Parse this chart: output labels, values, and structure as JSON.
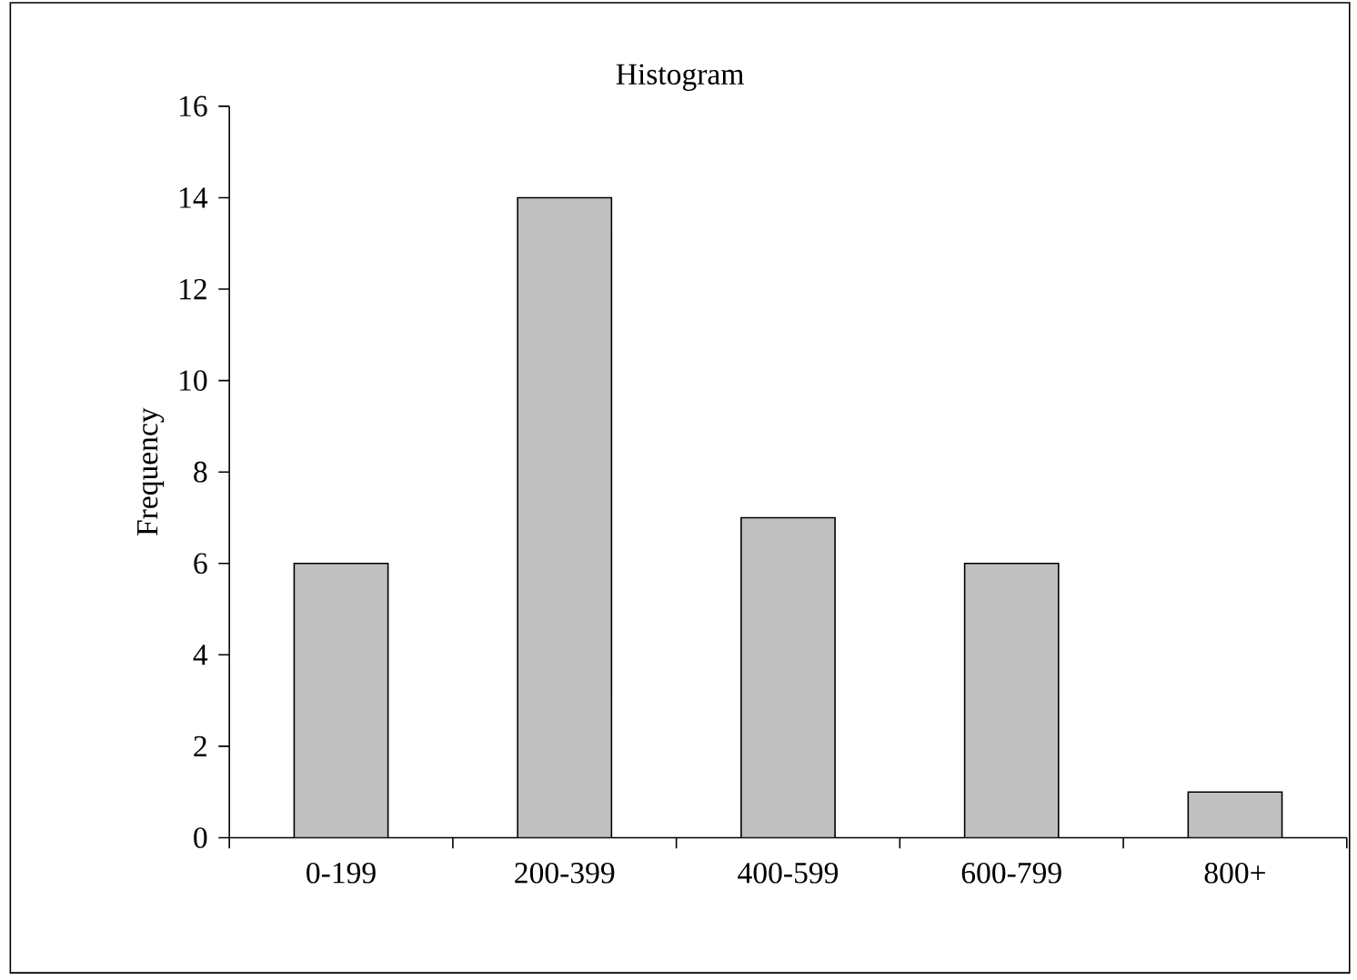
{
  "chart_data": {
    "type": "bar",
    "title": "Histogram",
    "ylabel": "Frequency",
    "categories": [
      "0-199",
      "200-399",
      "400-599",
      "600-799",
      "800+"
    ],
    "values": [
      6,
      14,
      7,
      6,
      1
    ],
    "color": "#c0c0c0",
    "ylim": [
      0,
      16
    ],
    "yticks": [
      0,
      2,
      4,
      6,
      8,
      10,
      12,
      14,
      16
    ]
  }
}
